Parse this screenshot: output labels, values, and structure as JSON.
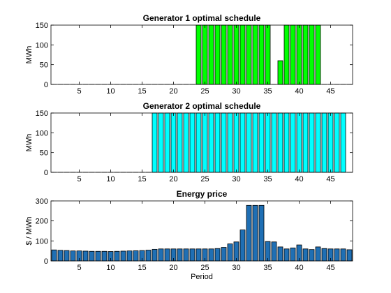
{
  "chart_data": [
    {
      "type": "bar",
      "title": "Generator 1 optimal schedule",
      "xlabel": "",
      "ylabel": "MWh",
      "xlim": [
        0.5,
        48.5
      ],
      "ylim": [
        0,
        150
      ],
      "xticks": [
        5,
        10,
        15,
        20,
        25,
        30,
        35,
        40,
        45
      ],
      "yticks": [
        0,
        50,
        100,
        150
      ],
      "color": "#00ff00",
      "x": [
        1,
        2,
        3,
        4,
        5,
        6,
        7,
        8,
        9,
        10,
        11,
        12,
        13,
        14,
        15,
        16,
        17,
        18,
        19,
        20,
        21,
        22,
        23,
        24,
        25,
        26,
        27,
        28,
        29,
        30,
        31,
        32,
        33,
        34,
        35,
        36,
        37,
        38,
        39,
        40,
        41,
        42,
        43,
        44,
        45,
        46,
        47,
        48
      ],
      "values": [
        0,
        0,
        0,
        0,
        0,
        0,
        0,
        0,
        0,
        0,
        0,
        0,
        0,
        0,
        0,
        0,
        0,
        0,
        0,
        0,
        0,
        0,
        0,
        150,
        150,
        150,
        150,
        150,
        150,
        150,
        150,
        150,
        150,
        150,
        150,
        0,
        60,
        150,
        150,
        150,
        150,
        150,
        150,
        0,
        0,
        0,
        0,
        0
      ]
    },
    {
      "type": "bar",
      "title": "Generator 2 optimal schedule",
      "xlabel": "",
      "ylabel": "MWh",
      "xlim": [
        0.5,
        48.5
      ],
      "ylim": [
        0,
        150
      ],
      "xticks": [
        5,
        10,
        15,
        20,
        25,
        30,
        35,
        40,
        45
      ],
      "yticks": [
        0,
        50,
        100,
        150
      ],
      "color": "#00ffff",
      "x": [
        1,
        2,
        3,
        4,
        5,
        6,
        7,
        8,
        9,
        10,
        11,
        12,
        13,
        14,
        15,
        16,
        17,
        18,
        19,
        20,
        21,
        22,
        23,
        24,
        25,
        26,
        27,
        28,
        29,
        30,
        31,
        32,
        33,
        34,
        35,
        36,
        37,
        38,
        39,
        40,
        41,
        42,
        43,
        44,
        45,
        46,
        47,
        48
      ],
      "values": [
        0,
        0,
        0,
        0,
        0,
        0,
        0,
        0,
        0,
        0,
        0,
        0,
        0,
        0,
        0,
        0,
        150,
        150,
        150,
        150,
        150,
        150,
        150,
        150,
        150,
        150,
        150,
        150,
        150,
        150,
        150,
        150,
        150,
        150,
        150,
        150,
        150,
        150,
        150,
        150,
        150,
        150,
        150,
        150,
        150,
        150,
        150,
        0
      ]
    },
    {
      "type": "bar",
      "title": "Energy price",
      "xlabel": "Period",
      "ylabel": "$ / MWh",
      "xlim": [
        0.5,
        48.5
      ],
      "ylim": [
        0,
        300
      ],
      "xticks": [
        5,
        10,
        15,
        20,
        25,
        30,
        35,
        40,
        45
      ],
      "yticks": [
        0,
        100,
        200,
        300
      ],
      "color": "#1f6fb4",
      "x": [
        1,
        2,
        3,
        4,
        5,
        6,
        7,
        8,
        9,
        10,
        11,
        12,
        13,
        14,
        15,
        16,
        17,
        18,
        19,
        20,
        21,
        22,
        23,
        24,
        25,
        26,
        27,
        28,
        29,
        30,
        31,
        32,
        33,
        34,
        35,
        36,
        37,
        38,
        39,
        40,
        41,
        42,
        43,
        44,
        45,
        46,
        47,
        48
      ],
      "values": [
        55,
        53,
        52,
        50,
        50,
        49,
        48,
        48,
        48,
        47,
        48,
        49,
        50,
        51,
        52,
        54,
        58,
        60,
        60,
        60,
        60,
        60,
        60,
        60,
        60,
        60,
        62,
        68,
        85,
        95,
        155,
        278,
        278,
        278,
        97,
        95,
        70,
        60,
        65,
        80,
        60,
        57,
        70,
        62,
        60,
        60,
        60,
        56
      ]
    }
  ]
}
